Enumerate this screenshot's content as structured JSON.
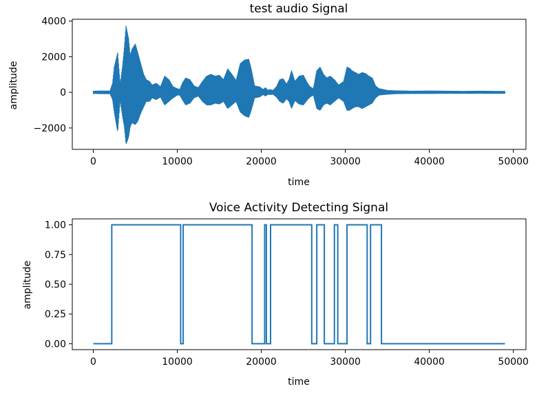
{
  "colors": {
    "series": "#1f77b4",
    "axes": "#000000",
    "background": "#ffffff"
  },
  "chart_data": [
    {
      "type": "line",
      "title": "test audio Signal",
      "xlabel": "time",
      "ylabel": "amplitude",
      "xlim": [
        -2500,
        51500
      ],
      "ylim": [
        -3200,
        4100
      ],
      "xticks": [
        0,
        10000,
        20000,
        30000,
        40000,
        50000
      ],
      "xtick_labels": [
        "0",
        "10000",
        "20000",
        "30000",
        "40000",
        "50000"
      ],
      "yticks": [
        -2000,
        0,
        2000,
        4000
      ],
      "ytick_labels": [
        "−2000",
        "0",
        "2000",
        "4000"
      ],
      "grid": false,
      "series": [
        {
          "envelope_x": [
            0,
            1000,
            2000,
            2300,
            2500,
            2900,
            3200,
            3500,
            3700,
            3900,
            4200,
            4400,
            4600,
            5000,
            5300,
            5700,
            6000,
            6300,
            6700,
            7000,
            7500,
            8000,
            8500,
            9000,
            9500,
            10000,
            10300,
            10600,
            11000,
            11500,
            12000,
            12500,
            13000,
            13500,
            14000,
            14500,
            15000,
            15500,
            16000,
            16500,
            17000,
            17500,
            18000,
            18500,
            18800,
            19200,
            19800,
            20200,
            20500,
            20800,
            21000,
            21400,
            21800,
            22200,
            22600,
            23000,
            23300,
            23600,
            24000,
            24500,
            25000,
            25500,
            25800,
            26200,
            26600,
            27000,
            27400,
            27800,
            28200,
            28700,
            29200,
            29800,
            30200,
            30500,
            30800,
            31200,
            31600,
            32000,
            32400,
            32800,
            33200,
            33600,
            34000,
            34500,
            35000,
            36000,
            38000,
            40000,
            42000,
            44000,
            46000,
            48000,
            49000
          ],
          "envelope_upper": [
            60,
            70,
            70,
            500,
            1400,
            2200,
            400,
            1500,
            2500,
            3700,
            3000,
            2000,
            2400,
            2700,
            2200,
            1500,
            1000,
            700,
            600,
            400,
            500,
            300,
            900,
            700,
            300,
            200,
            150,
            500,
            800,
            700,
            350,
            250,
            600,
            900,
            1000,
            900,
            950,
            700,
            1300,
            1000,
            650,
            1600,
            1800,
            1850,
            1300,
            350,
            300,
            150,
            250,
            100,
            150,
            100,
            300,
            700,
            750,
            450,
            700,
            1200,
            600,
            900,
            950,
            500,
            300,
            200,
            1200,
            1400,
            1000,
            800,
            900,
            700,
            400,
            600,
            1400,
            1350,
            1200,
            1100,
            1000,
            1100,
            1050,
            900,
            800,
            350,
            200,
            150,
            100,
            80,
            60,
            70,
            60,
            50,
            60,
            50,
            50
          ],
          "envelope_lower": [
            -60,
            -70,
            -70,
            -400,
            -1100,
            -2200,
            -400,
            -1400,
            -1900,
            -2900,
            -2500,
            -1900,
            -1700,
            -1800,
            -1600,
            -1100,
            -800,
            -500,
            -500,
            -300,
            -400,
            -250,
            -700,
            -500,
            -300,
            -150,
            -150,
            -400,
            -700,
            -600,
            -300,
            -200,
            -500,
            -700,
            -700,
            -600,
            -650,
            -500,
            -900,
            -700,
            -500,
            -1100,
            -1300,
            -1400,
            -1000,
            -300,
            -250,
            -120,
            -200,
            -100,
            -120,
            -100,
            -250,
            -500,
            -600,
            -350,
            -500,
            -900,
            -450,
            -650,
            -700,
            -400,
            -250,
            -150,
            -900,
            -1000,
            -700,
            -600,
            -700,
            -500,
            -300,
            -500,
            -1000,
            -1000,
            -900,
            -800,
            -800,
            -900,
            -800,
            -700,
            -600,
            -300,
            -150,
            -120,
            -100,
            -70,
            -60,
            -60,
            -50,
            -50,
            -50,
            -50,
            -50
          ]
        }
      ]
    },
    {
      "type": "line",
      "title": "Voice Activity Detecting Signal",
      "xlabel": "time",
      "ylabel": "amplitude",
      "xlim": [
        -2500,
        51500
      ],
      "ylim": [
        -0.05,
        1.05
      ],
      "xticks": [
        0,
        10000,
        20000,
        30000,
        40000,
        50000
      ],
      "xtick_labels": [
        "0",
        "10000",
        "20000",
        "30000",
        "40000",
        "50000"
      ],
      "yticks": [
        0,
        0.25,
        0.5,
        0.75,
        1.0
      ],
      "ytick_labels": [
        "0.00",
        "0.25",
        "0.50",
        "0.75",
        "1.00"
      ],
      "grid": false,
      "series": [
        {
          "x": [
            0,
            2200,
            2200,
            10400,
            10400,
            10700,
            10700,
            18900,
            18900,
            20400,
            20400,
            20600,
            20600,
            21100,
            21100,
            26000,
            26000,
            26600,
            26600,
            27500,
            27500,
            28700,
            28700,
            29100,
            29100,
            30200,
            30200,
            32600,
            32600,
            33000,
            33000,
            34300,
            34300,
            49000
          ],
          "y": [
            0,
            0,
            1,
            1,
            0,
            0,
            1,
            1,
            0,
            0,
            1,
            1,
            0,
            0,
            1,
            1,
            0,
            0,
            1,
            1,
            0,
            0,
            1,
            1,
            0,
            0,
            1,
            1,
            0,
            0,
            1,
            1,
            0,
            0
          ]
        }
      ]
    }
  ]
}
